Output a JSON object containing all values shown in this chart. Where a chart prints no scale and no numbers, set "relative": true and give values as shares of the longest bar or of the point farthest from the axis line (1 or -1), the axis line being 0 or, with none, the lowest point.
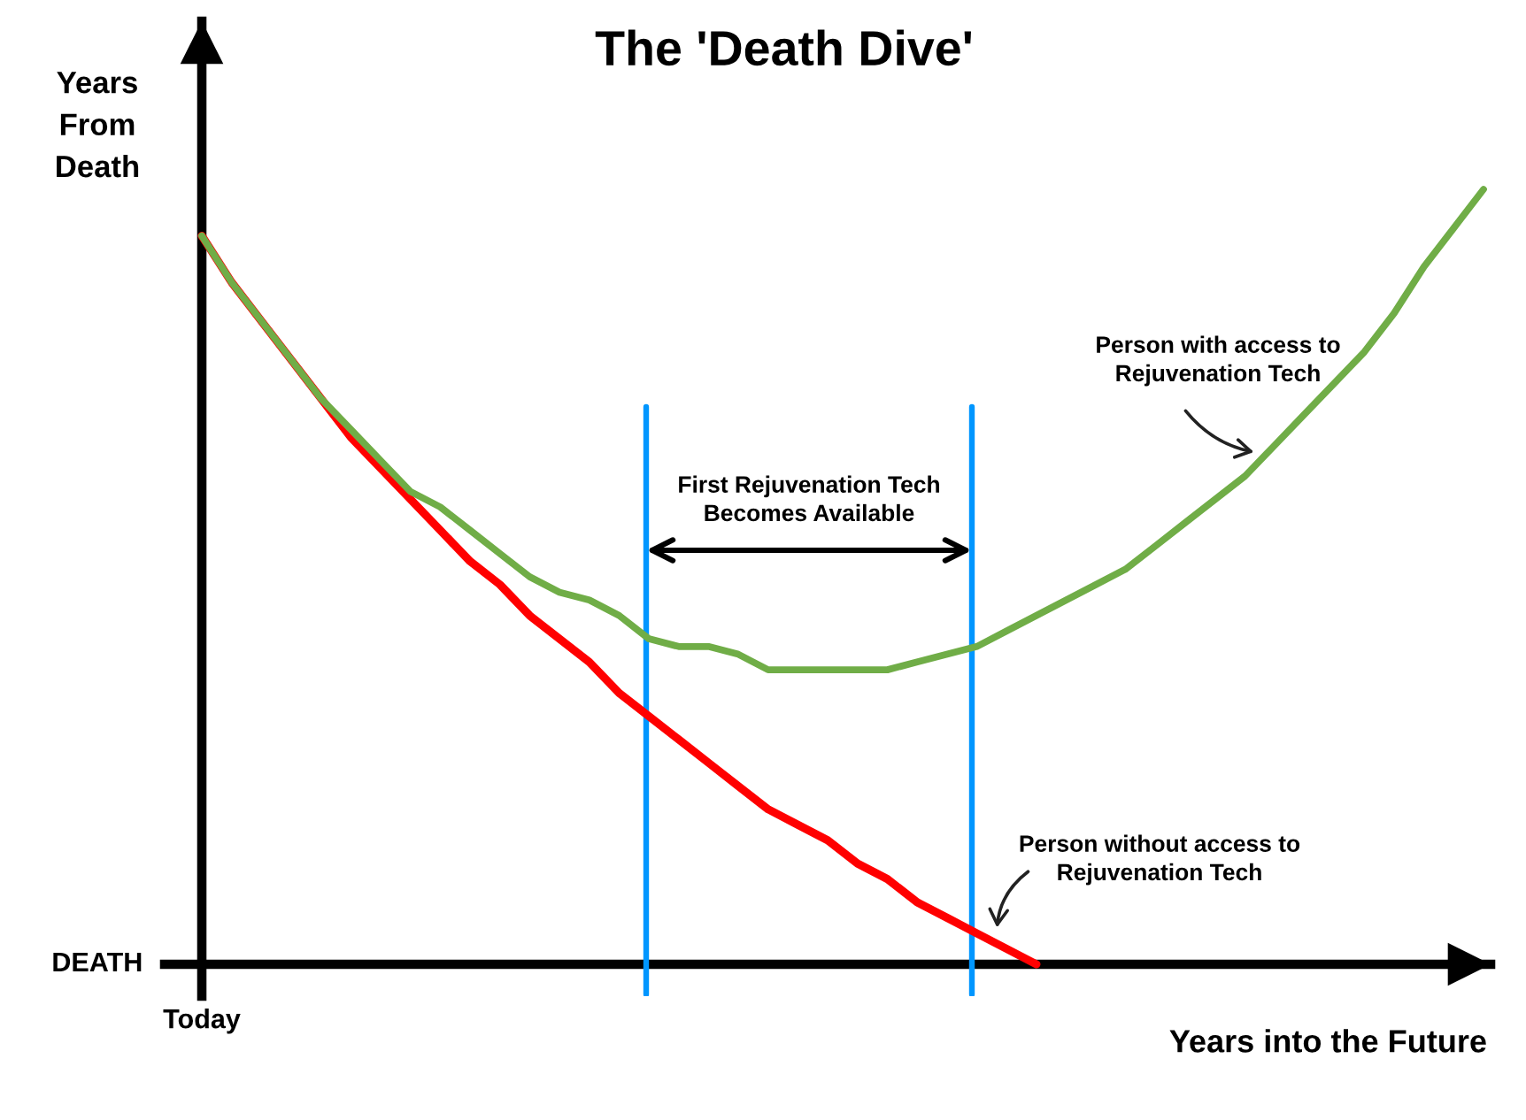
{
  "chart_data": {
    "type": "line",
    "title": "The 'Death Dive'",
    "xlabel": "Years into the Future",
    "ylabel": "Years\nFrom\nDeath",
    "relative": true,
    "categories": [
      null,
      null,
      null,
      null,
      null,
      null,
      null,
      null,
      null,
      null,
      null,
      null,
      null,
      null,
      null,
      null,
      null,
      null,
      null,
      null,
      null,
      null,
      null,
      null,
      null,
      null,
      null,
      null,
      null,
      null,
      null,
      null,
      null,
      null,
      null,
      null,
      null,
      null,
      null,
      null,
      null,
      null,
      null,
      null
    ],
    "series": [
      {
        "name": "Person without access to\nRejuvenation Tech",
        "color": "#ff0000",
        "values": [
          0.94,
          0.88,
          0.83,
          0.78,
          0.73,
          0.68,
          0.64,
          0.6,
          0.56,
          0.52,
          0.49,
          0.45,
          0.42,
          0.39,
          0.35,
          0.32,
          0.29,
          0.26,
          0.23,
          0.2,
          0.18,
          0.16,
          0.13,
          0.11,
          0.08,
          0.06,
          0.04,
          0.02,
          0,
          null,
          null,
          null,
          null,
          null,
          null,
          null,
          null,
          null,
          null,
          null,
          null,
          null,
          null,
          null
        ]
      },
      {
        "name": "Person with access to\nRejuvenation Tech",
        "color": "#70ad47",
        "values": [
          0.94,
          0.88,
          0.83,
          0.78,
          0.73,
          0.69,
          0.65,
          0.61,
          0.59,
          0.56,
          0.53,
          0.5,
          0.48,
          0.47,
          0.45,
          0.42,
          0.41,
          0.41,
          0.4,
          0.38,
          0.38,
          0.38,
          0.38,
          0.38,
          0.39,
          0.4,
          0.41,
          0.43,
          0.45,
          0.47,
          0.49,
          0.51,
          0.54,
          0.57,
          0.6,
          0.63,
          0.67,
          0.71,
          0.75,
          0.79,
          0.84,
          0.9,
          0.95,
          1.0
        ]
      }
    ],
    "annotations": [
      "First Rejuvenation Tech\nBecomes Available",
      "Today",
      "DEATH"
    ]
  }
}
